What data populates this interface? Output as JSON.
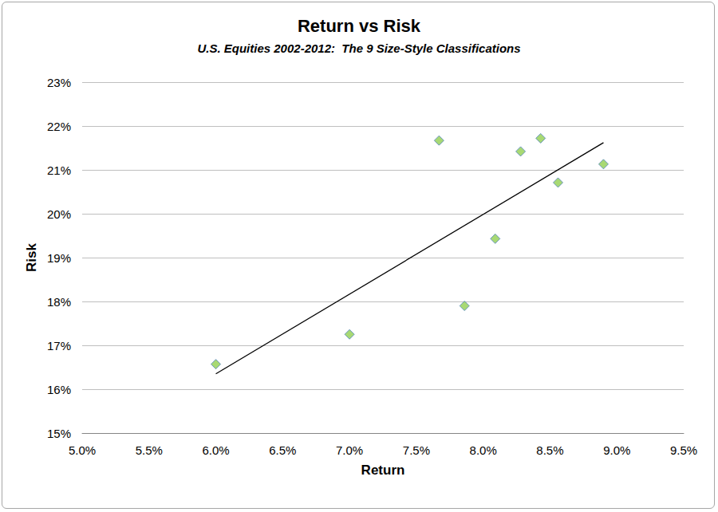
{
  "chart_data": {
    "type": "scatter",
    "title": "Return vs Risk",
    "subtitle": "U.S. Equities 2002-2012:  The 9 Size-Style Classifications",
    "x_label": "Return",
    "y_label": "Risk",
    "x": [
      6.0,
      7.0,
      7.67,
      7.86,
      8.09,
      8.28,
      8.43,
      8.56,
      8.9
    ],
    "values": [
      16.57,
      17.25,
      21.67,
      17.9,
      19.43,
      21.42,
      21.72,
      20.71,
      21.13
    ],
    "color": "#92d050",
    "marker": "diamond",
    "trendline": {
      "x": [
        6.0,
        8.9
      ],
      "values": [
        16.35,
        21.62
      ],
      "color": "#000000"
    },
    "xlim": [
      5,
      9.5
    ],
    "xticks": [
      {
        "value": 5,
        "label": "5.0%"
      },
      {
        "value": 5.5,
        "label": "5.5%"
      },
      {
        "value": 6,
        "label": "6.0%"
      },
      {
        "value": 6.5,
        "label": "6.5%"
      },
      {
        "value": 7,
        "label": "7.0%"
      },
      {
        "value": 7.5,
        "label": "7.5%"
      },
      {
        "value": 8,
        "label": "8.0%"
      },
      {
        "value": 8.5,
        "label": "8.5%"
      },
      {
        "value": 9,
        "label": "9.0%"
      },
      {
        "value": 9.5,
        "label": "9.5%"
      }
    ],
    "ylim": [
      15,
      23
    ],
    "yticks": [
      {
        "value": 15,
        "label": "15%"
      },
      {
        "value": 16,
        "label": "16%"
      },
      {
        "value": 17,
        "label": "17%"
      },
      {
        "value": 18,
        "label": "18%"
      },
      {
        "value": 19,
        "label": "19%"
      },
      {
        "value": 20,
        "label": "20%"
      },
      {
        "value": 21,
        "label": "21%"
      },
      {
        "value": 22,
        "label": "22%"
      },
      {
        "value": 23,
        "label": "23%"
      }
    ],
    "grid": true
  }
}
